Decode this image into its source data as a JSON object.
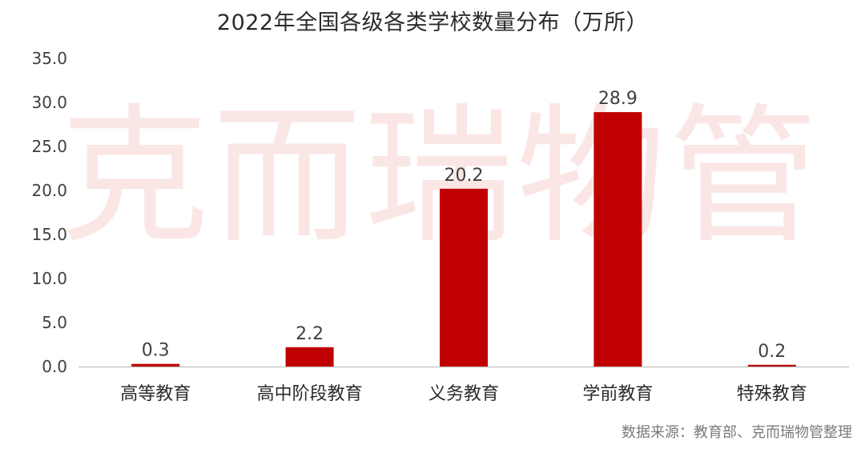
{
  "title": "2022年全国各级各类学校数量分布（万所）",
  "watermark": "克而瑞物管",
  "source": "数据来源：教育部、克而瑞物管整理",
  "colors": {
    "bar": "#c00000",
    "axis_text": "#404040",
    "baseline": "#c8c8c8"
  },
  "chart_data": {
    "type": "bar",
    "title": "2022年全国各级各类学校数量分布（万所）",
    "categories": [
      "高等教育",
      "高中阶段教育",
      "义务教育",
      "学前教育",
      "特殊教育"
    ],
    "values": [
      0.3,
      2.2,
      20.2,
      28.9,
      0.2
    ],
    "value_labels": [
      "0.3",
      "2.2",
      "20.2",
      "28.9",
      "0.2"
    ],
    "ylim": [
      0,
      35
    ],
    "yticks": [
      "0.0",
      "5.0",
      "10.0",
      "15.0",
      "20.0",
      "25.0",
      "30.0",
      "35.0"
    ],
    "xlabel": "",
    "ylabel": "",
    "grid": false,
    "legend": "none"
  }
}
